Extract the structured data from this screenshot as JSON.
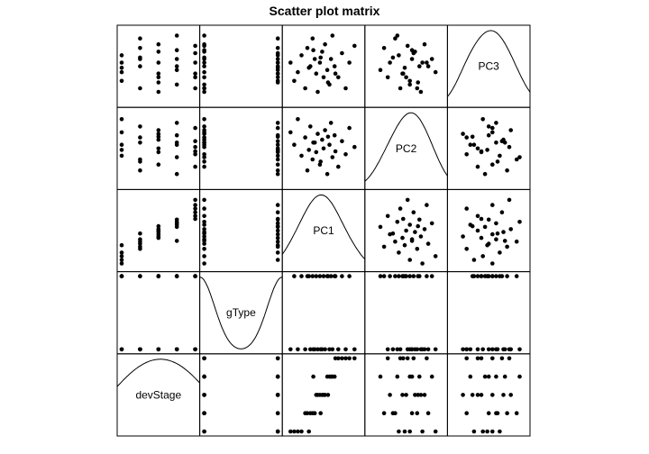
{
  "chart_data": {
    "type": "scatter",
    "title": "Scatter plot matrix",
    "layout": "upper rows top-to-bottom: PC3, PC2, PC1, gType, devStage; variable order on diagonal from bottom-left: devStage, gType, PC1, PC2, PC3",
    "variables": [
      "devStage",
      "gType",
      "PC1",
      "PC2",
      "PC3"
    ],
    "diagonal": "kernel density curve with variable name",
    "ranges": {
      "devStage": [
        1,
        5
      ],
      "gType": [
        1,
        2
      ],
      "PC1": [
        0,
        1
      ],
      "PC2": [
        0,
        1
      ],
      "PC3": [
        0,
        1
      ]
    },
    "observations": [
      {
        "devStage": 1,
        "gType": 1,
        "PC1": 0.05,
        "PC2": 0.72,
        "PC3": 0.55
      },
      {
        "devStage": 1,
        "gType": 2,
        "PC1": 0.1,
        "PC2": 0.55,
        "PC3": 0.3
      },
      {
        "devStage": 1,
        "gType": 1,
        "PC1": 0.15,
        "PC2": 0.9,
        "PC3": 0.42
      },
      {
        "devStage": 1,
        "gType": 2,
        "PC1": 0.2,
        "PC2": 0.4,
        "PC3": 0.65
      },
      {
        "devStage": 2,
        "gType": 1,
        "PC1": 0.25,
        "PC2": 0.65,
        "PC3": 0.2
      },
      {
        "devStage": 2,
        "gType": 2,
        "PC1": 0.28,
        "PC2": 0.2,
        "PC3": 0.75
      },
      {
        "devStage": 2,
        "gType": 1,
        "PC1": 0.32,
        "PC2": 0.8,
        "PC3": 0.5
      },
      {
        "devStage": 2,
        "gType": 2,
        "PC1": 0.35,
        "PC2": 0.35,
        "PC3": 0.88
      },
      {
        "devStage": 2,
        "gType": 1,
        "PC1": 0.38,
        "PC2": 0.58,
        "PC3": 0.6
      },
      {
        "devStage": 3,
        "gType": 2,
        "PC1": 0.4,
        "PC2": 0.45,
        "PC3": 0.4
      },
      {
        "devStage": 3,
        "gType": 1,
        "PC1": 0.42,
        "PC2": 0.7,
        "PC3": 0.15
      },
      {
        "devStage": 3,
        "gType": 2,
        "PC1": 0.45,
        "PC2": 0.28,
        "PC3": 0.55
      },
      {
        "devStage": 3,
        "gType": 1,
        "PC1": 0.48,
        "PC2": 0.62,
        "PC3": 0.7
      },
      {
        "devStage": 3,
        "gType": 2,
        "PC1": 0.5,
        "PC2": 0.5,
        "PC3": 0.35
      },
      {
        "devStage": 3,
        "gType": 1,
        "PC1": 0.52,
        "PC2": 0.75,
        "PC3": 0.8
      },
      {
        "devStage": 4,
        "gType": 2,
        "PC1": 0.55,
        "PC2": 0.15,
        "PC3": 0.45
      },
      {
        "devStage": 4,
        "gType": 1,
        "PC1": 0.58,
        "PC2": 0.55,
        "PC3": 0.25
      },
      {
        "devStage": 4,
        "gType": 2,
        "PC1": 0.6,
        "PC2": 0.85,
        "PC3": 0.6
      },
      {
        "devStage": 4,
        "gType": 1,
        "PC1": 0.62,
        "PC2": 0.38,
        "PC3": 0.92
      },
      {
        "devStage": 4,
        "gType": 2,
        "PC1": 0.65,
        "PC2": 0.68,
        "PC3": 0.5
      },
      {
        "devStage": 5,
        "gType": 1,
        "PC1": 0.7,
        "PC2": 0.25,
        "PC3": 0.35
      },
      {
        "devStage": 5,
        "gType": 2,
        "PC1": 0.75,
        "PC2": 0.6,
        "PC3": 0.68
      },
      {
        "devStage": 5,
        "gType": 1,
        "PC1": 0.8,
        "PC2": 0.42,
        "PC3": 0.2
      },
      {
        "devStage": 5,
        "gType": 2,
        "PC1": 0.85,
        "PC2": 0.78,
        "PC3": 0.55
      },
      {
        "devStage": 5,
        "gType": 1,
        "PC1": 0.92,
        "PC2": 0.52,
        "PC3": 0.78
      },
      {
        "devStage": 1,
        "gType": 2,
        "PC1": 0.3,
        "PC2": 0.48,
        "PC3": 0.48
      },
      {
        "devStage": 2,
        "gType": 1,
        "PC1": 0.46,
        "PC2": 0.32,
        "PC3": 0.62
      },
      {
        "devStage": 3,
        "gType": 2,
        "PC1": 0.56,
        "PC2": 0.66,
        "PC3": 0.28
      },
      {
        "devStage": 4,
        "gType": 1,
        "PC1": 0.36,
        "PC2": 0.58,
        "PC3": 0.72
      },
      {
        "devStage": 5,
        "gType": 2,
        "PC1": 0.66,
        "PC2": 0.46,
        "PC3": 0.4
      }
    ]
  }
}
